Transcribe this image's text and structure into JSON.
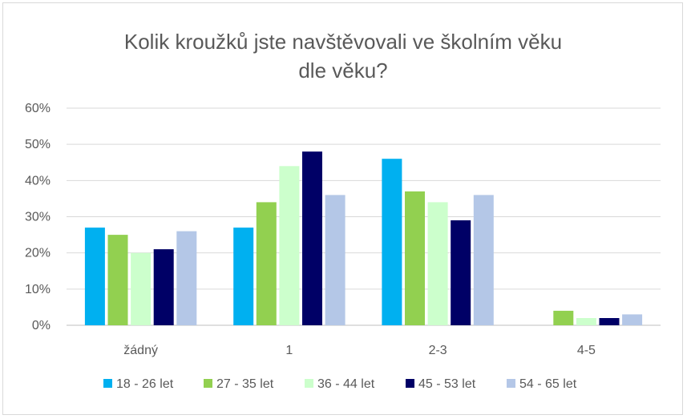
{
  "chart_data": {
    "type": "bar",
    "title_lines": [
      "Kolik kroužků  jste navštěvovali ve školním věku",
      "dle věku?"
    ],
    "categories": [
      "žádný",
      "1",
      "2-3",
      "4-5"
    ],
    "ylim": [
      0,
      60
    ],
    "y_ticks": [
      "0%",
      "10%",
      "20%",
      "30%",
      "40%",
      "50%",
      "60%"
    ],
    "y_tick_values": [
      0,
      10,
      20,
      30,
      40,
      50,
      60
    ],
    "grid": true,
    "legend_position": "bottom",
    "series": [
      {
        "name": "18 - 26 let",
        "color": "#00b0f0",
        "values": [
          27,
          27,
          46,
          0
        ]
      },
      {
        "name": "27 - 35 let",
        "color": "#92d050",
        "values": [
          25,
          34,
          37,
          4
        ]
      },
      {
        "name": "36 - 44 let",
        "color": "#ccffcc",
        "values": [
          20,
          44,
          34,
          2
        ]
      },
      {
        "name": "45 - 53 let",
        "color": "#000066",
        "values": [
          21,
          48,
          29,
          2
        ]
      },
      {
        "name": "54 - 65 let",
        "color": "#b4c7e7",
        "values": [
          26,
          36,
          36,
          3
        ]
      }
    ]
  }
}
